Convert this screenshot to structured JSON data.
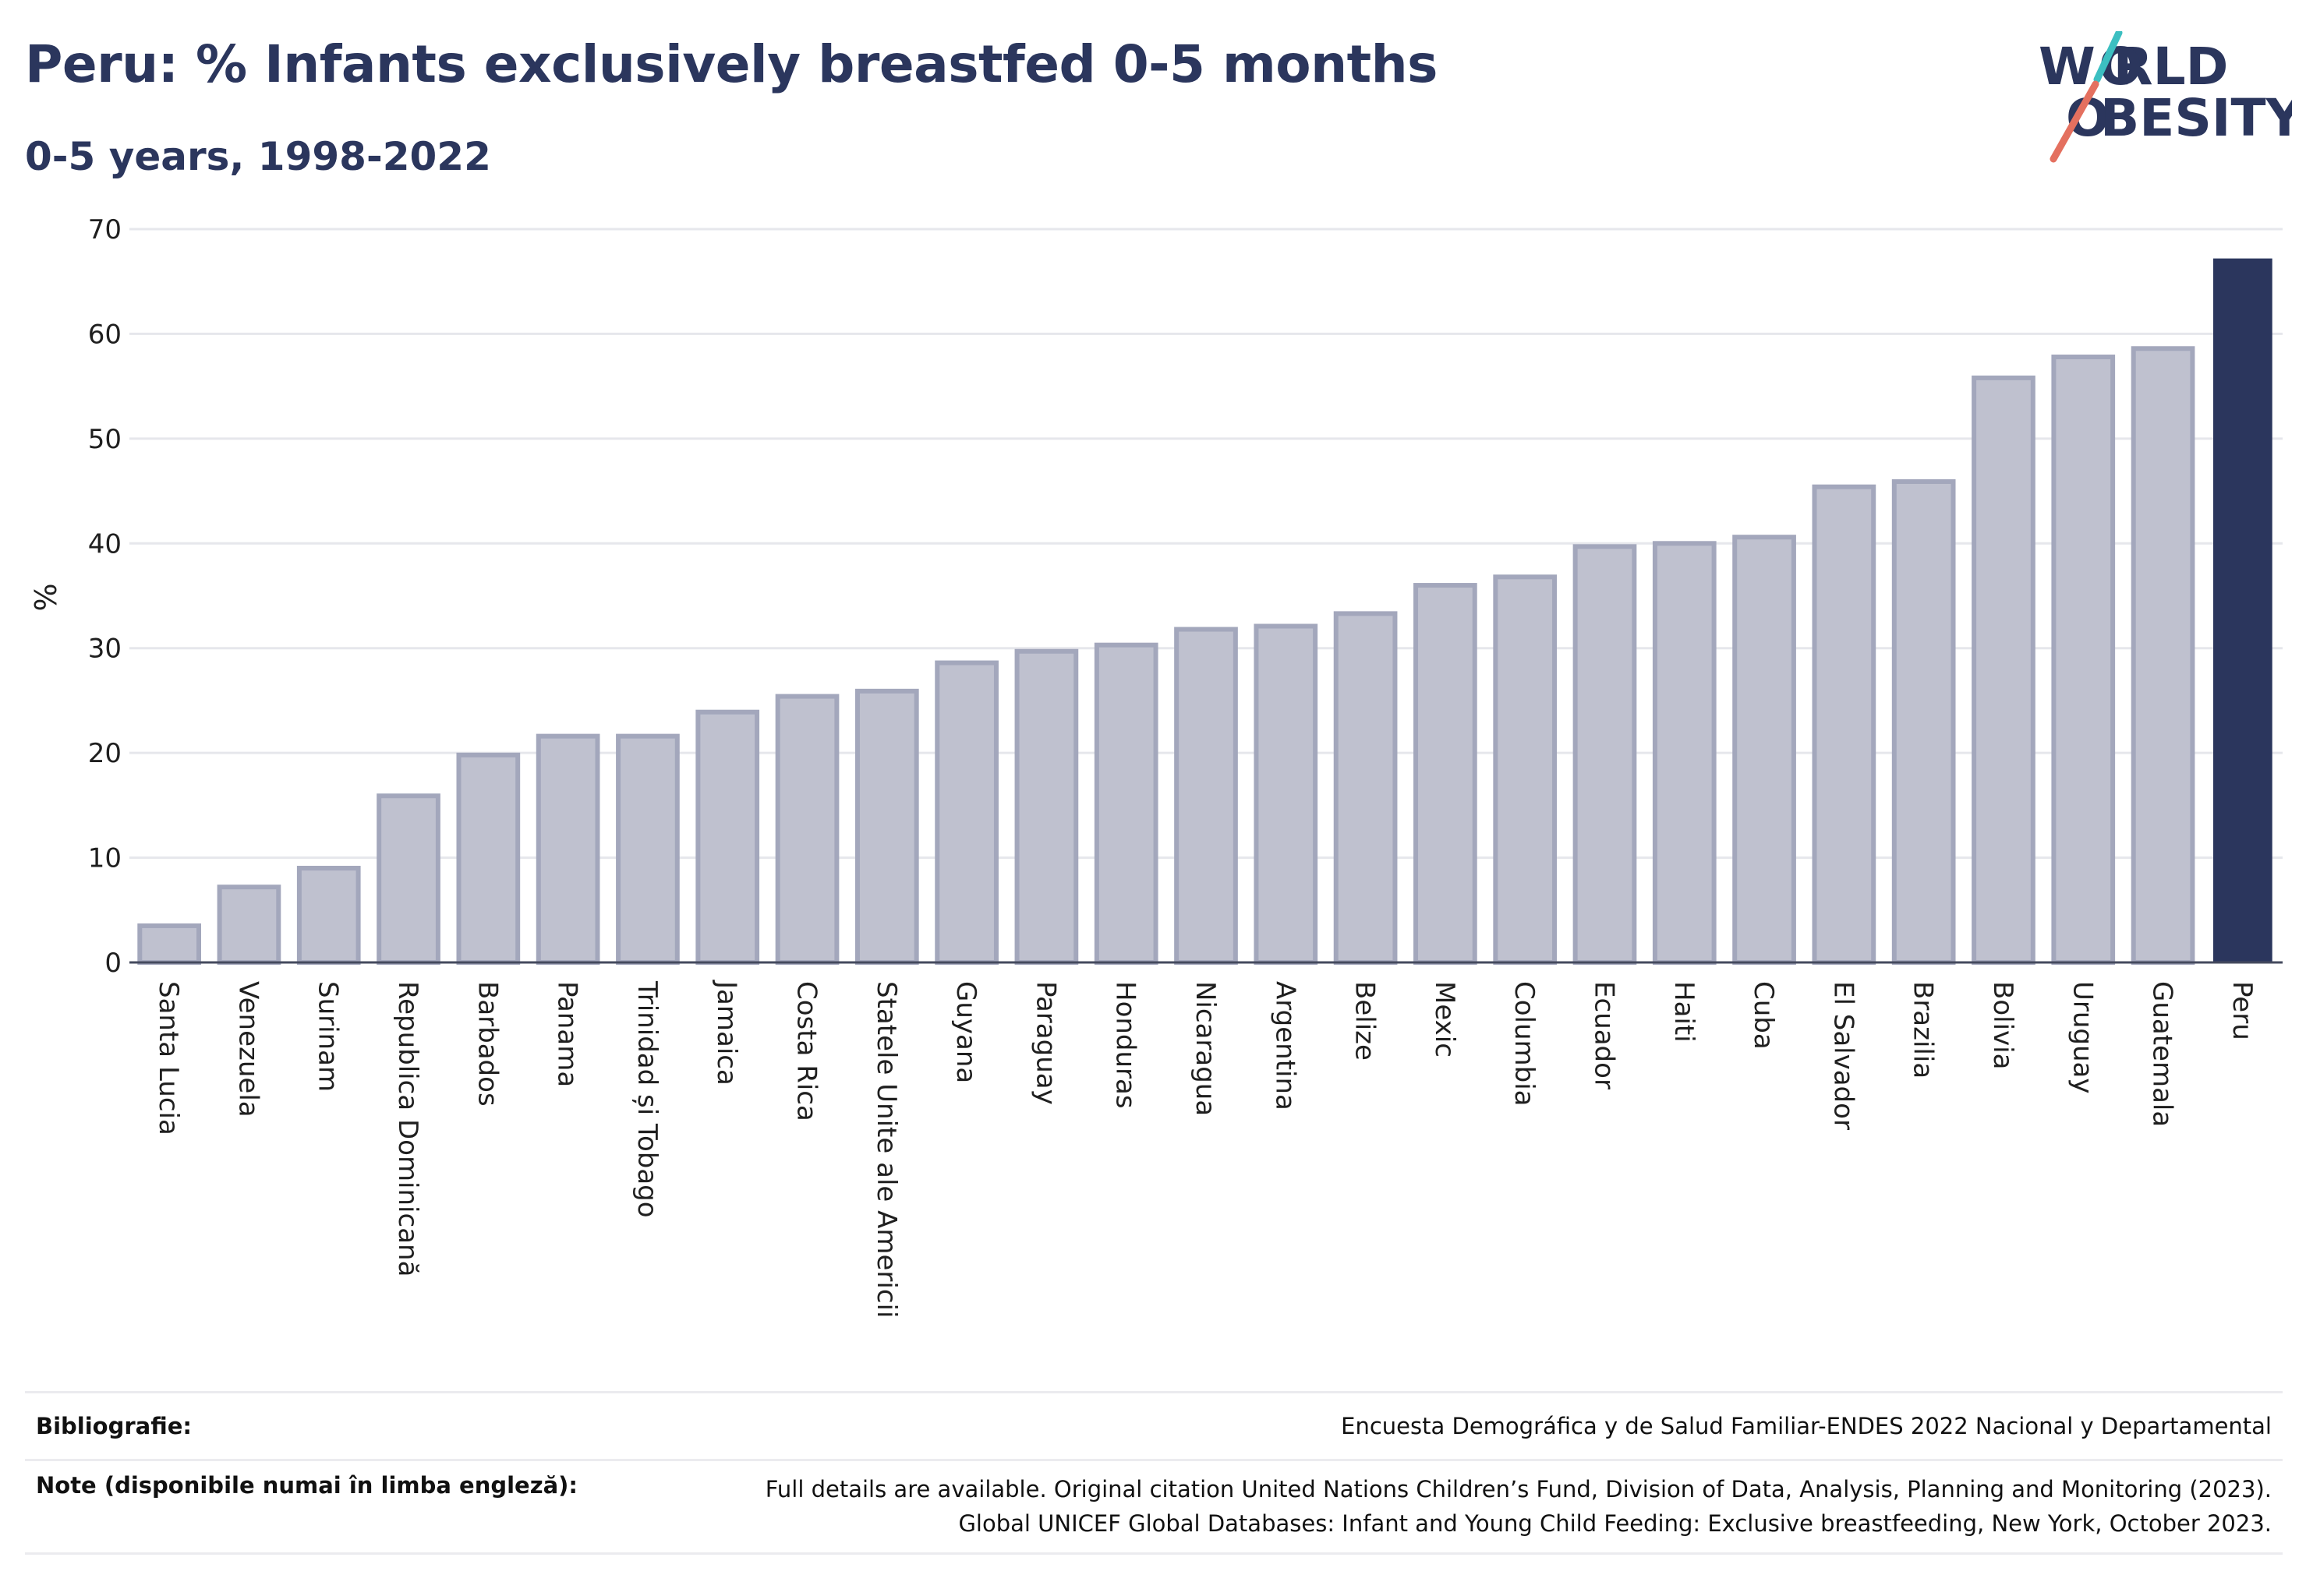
{
  "header": {
    "title": "Peru: % Infants exclusively breastfed 0-5 months",
    "subtitle": "0-5 years, 1998-2022"
  },
  "logo": {
    "line1": "W  RLD",
    "line2": "BESITY",
    "letter_o": "O"
  },
  "colors": {
    "highlight": "#2b365d",
    "bar_fill": "#bfc1cf",
    "bar_stroke": "#a3a7bc",
    "accent_teal": "#3cbfc1",
    "accent_coral": "#e4705f"
  },
  "chart_data": {
    "type": "bar",
    "ylabel": "%",
    "ylim": [
      0,
      70
    ],
    "yticks": [
      0,
      10,
      20,
      30,
      40,
      50,
      60,
      70
    ],
    "grid": true,
    "highlight": "Peru",
    "categories": [
      "Santa Lucia",
      "Venezuela",
      "Surinam",
      "Republica Dominicană",
      "Barbados",
      "Panama",
      "Trinidad și Tobago",
      "Jamaica",
      "Costa Rica",
      "Statele Unite ale Americii",
      "Guyana",
      "Paraguay",
      "Honduras",
      "Nicaragua",
      "Argentina",
      "Belize",
      "Mexic",
      "Columbia",
      "Ecuador",
      "Haiti",
      "Cuba",
      "El Salvador",
      "Brazilia",
      "Bolivia",
      "Uruguay",
      "Guatemala",
      "Peru"
    ],
    "values": [
      3.5,
      7.2,
      9.0,
      15.9,
      19.8,
      21.6,
      21.6,
      23.9,
      25.4,
      25.9,
      28.6,
      29.7,
      30.3,
      31.8,
      32.1,
      33.3,
      36.0,
      36.8,
      39.7,
      40.0,
      40.6,
      45.4,
      45.9,
      55.8,
      57.8,
      58.6,
      67.2
    ]
  },
  "footer": {
    "bibliography_label": "Bibliografie:",
    "bibliography_value": "Encuesta Demográfica y de Salud Familiar-ENDES 2022 Nacional y Departamental",
    "notes_label": "Note (disponibile numai în limba engleză):",
    "notes_line1": "Full details are available. Original citation United Nations Children’s Fund, Division of Data, Analysis, Planning and Monitoring (2023).",
    "notes_line2": "Global UNICEF Global Databases: Infant and Young Child Feeding: Exclusive breastfeeding, New York, October 2023."
  }
}
